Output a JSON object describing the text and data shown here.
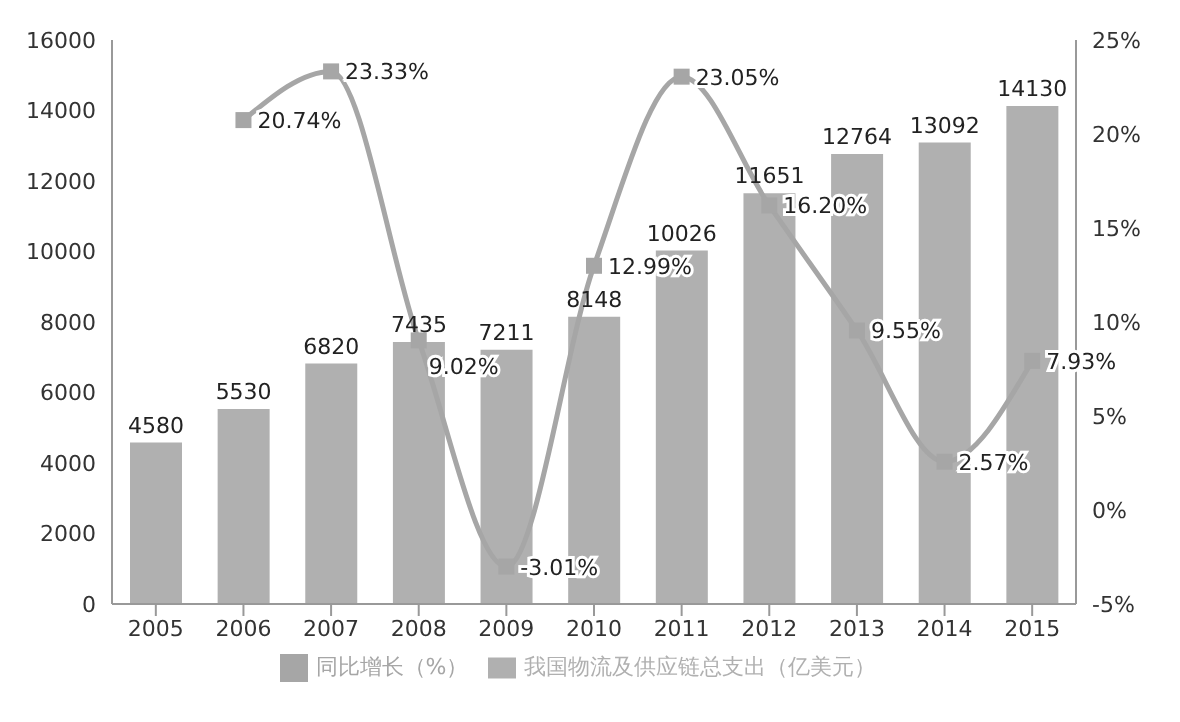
{
  "chart_data": {
    "type": "bar",
    "categories": [
      "2005",
      "2006",
      "2007",
      "2008",
      "2009",
      "2010",
      "2011",
      "2012",
      "2013",
      "2014",
      "2015"
    ],
    "series": [
      {
        "name": "我国物流及供应链总支出（亿美元）",
        "color": "#b0b0b0",
        "values": [
          4580,
          5530,
          6820,
          7435,
          7211,
          8148,
          10026,
          11651,
          12764,
          13092,
          14130
        ],
        "value_labels": [
          "4580",
          "5530",
          "6820",
          "7435",
          "7211",
          "8148",
          "10026",
          "11651",
          "12764",
          "13092",
          "14130"
        ]
      },
      {
        "name": "同比增长（%）",
        "type": "line",
        "axis": "y2",
        "color": "#a6a6a6",
        "values": [
          null,
          20.74,
          23.33,
          9.02,
          -3.01,
          12.99,
          23.05,
          16.2,
          9.55,
          2.57,
          7.93
        ],
        "value_labels": [
          null,
          "20.74%",
          "23.33%",
          "9.02%",
          "-3.01%",
          "12.99%",
          "23.05%",
          "16.20%",
          "9.55%",
          "2.57%",
          "7.93%"
        ]
      }
    ],
    "ylim": [
      0,
      16000
    ],
    "yticks": [
      0,
      2000,
      4000,
      6000,
      8000,
      10000,
      12000,
      14000,
      16000
    ],
    "y2lim": [
      -5,
      25
    ],
    "y2ticks": [
      {
        "value": -5,
        "label": "-5%"
      },
      {
        "value": 0,
        "label": "0%"
      },
      {
        "value": 5,
        "label": "5%"
      },
      {
        "value": 10,
        "label": "10%"
      },
      {
        "value": 15,
        "label": "15%"
      },
      {
        "value": 20,
        "label": "20%"
      },
      {
        "value": 25,
        "label": "25%"
      }
    ],
    "grid": false,
    "legend": "bottom",
    "marker": "square"
  }
}
